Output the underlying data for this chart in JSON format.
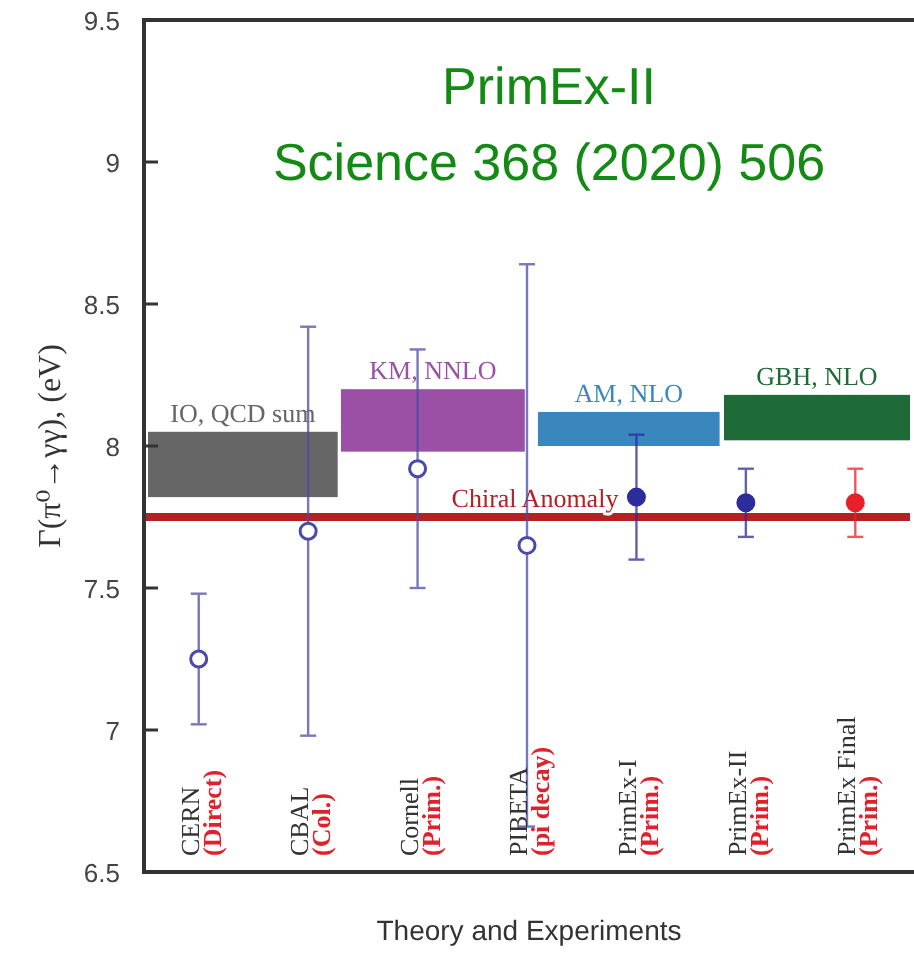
{
  "chart_data": {
    "type": "scatter",
    "title": "PrimEx-II",
    "subtitle": "Science 368 (2020) 506",
    "xlabel": "Theory and Experiments",
    "ylabel": "Γ(π⁰→γγ), (eV)",
    "categories": [
      "CERN (Direct)",
      "CBAL (Col.)",
      "Cornell (Prim.)",
      "PIBETA (pi decay)",
      "PrimEx-I (Prim.)",
      "PrimEx-II (Prim.)",
      "PrimEx Final (Prim.)"
    ],
    "series": [
      {
        "color": "#4a4aa8",
        "values": [
          7.25,
          7.7,
          7.92,
          7.65,
          null,
          null,
          null
        ],
        "errors": [
          0.23,
          0.72,
          0.42,
          0.99,
          null,
          null,
          null
        ]
      },
      {
        "color": "#2c2c9a",
        "values": [
          null,
          null,
          null,
          null,
          7.82,
          7.8,
          null
        ],
        "errors": [
          null,
          null,
          null,
          null,
          0.22,
          0.12,
          null
        ]
      },
      {
        "color": "#e8202a",
        "values": [
          null,
          null,
          null,
          null,
          null,
          null,
          7.8
        ],
        "errors": [
          null,
          null,
          null,
          null,
          null,
          null,
          0.12
        ]
      }
    ],
    "bands": [
      {
        "axis": "y",
        "from": 7.82,
        "to": 8.05,
        "label": "IO, QCD sum",
        "color": "#666666"
      },
      {
        "axis": "y",
        "from": 7.98,
        "to": 8.2,
        "label": "KM, NNLO",
        "color": "#9b50a6"
      },
      {
        "axis": "y",
        "from": 8.0,
        "to": 8.12,
        "label": "AM, NLO",
        "color": "#3a87bd"
      },
      {
        "axis": "y",
        "from": 8.02,
        "to": 8.18,
        "label": "GBH, NLO",
        "color": "#1e6b37"
      }
    ],
    "ref_lines": [
      {
        "axis": "y",
        "value": 7.75,
        "label": "Chiral Anomaly",
        "color": "#b22222"
      }
    ],
    "marker": "circle",
    "grid": false,
    "ylim": [
      6.5,
      9.5
    ],
    "yticks": [
      6.5,
      7,
      7.5,
      8,
      8.5,
      9,
      9.5
    ]
  }
}
